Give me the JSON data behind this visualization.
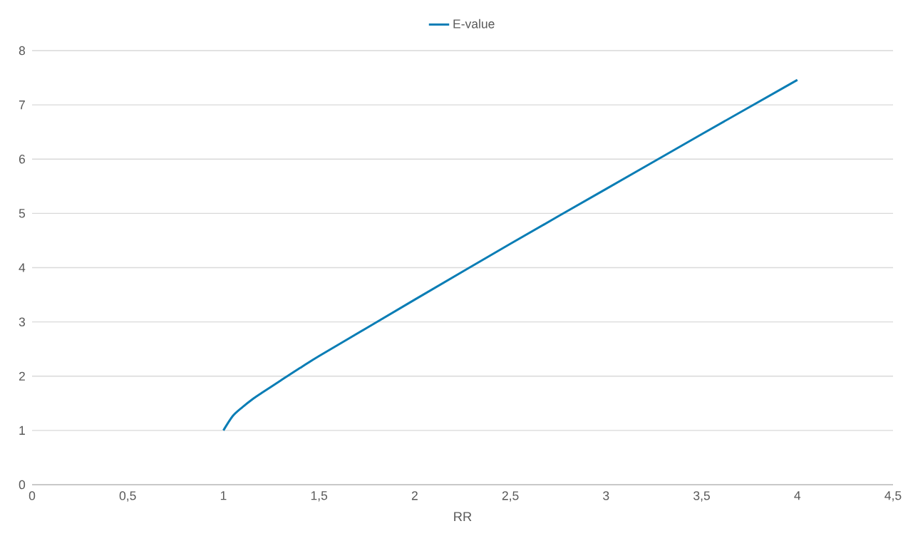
{
  "chart_data": {
    "type": "line",
    "xlabel": "RR",
    "legend": "top",
    "grid": "y",
    "marker": "none",
    "line_style": "solid",
    "x": [
      1,
      1.05,
      1.1,
      1.15,
      1.2,
      1.3,
      1.4,
      1.5,
      1.75,
      2,
      2.5,
      3,
      3.5,
      4
    ],
    "series": [
      {
        "name": "E-value",
        "color": "#0a7db5",
        "values": [
          1,
          1.27,
          1.43,
          1.57,
          1.69,
          1.92,
          2.15,
          2.37,
          2.89,
          3.41,
          4.44,
          5.45,
          6.46,
          7.46
        ]
      }
    ],
    "xlim": [
      0,
      4.5
    ],
    "ylim": [
      0,
      8
    ],
    "xticks": [
      0,
      {
        "value": 0.5,
        "label": "0,5"
      },
      1,
      {
        "value": 1.5,
        "label": "1,5"
      },
      2,
      {
        "value": 2.5,
        "label": "2,5"
      },
      3,
      {
        "value": 3.5,
        "label": "3,5"
      },
      4,
      {
        "value": 4.5,
        "label": "4,5"
      }
    ],
    "yticks": [
      0,
      1,
      2,
      3,
      4,
      5,
      6,
      7,
      8
    ]
  }
}
